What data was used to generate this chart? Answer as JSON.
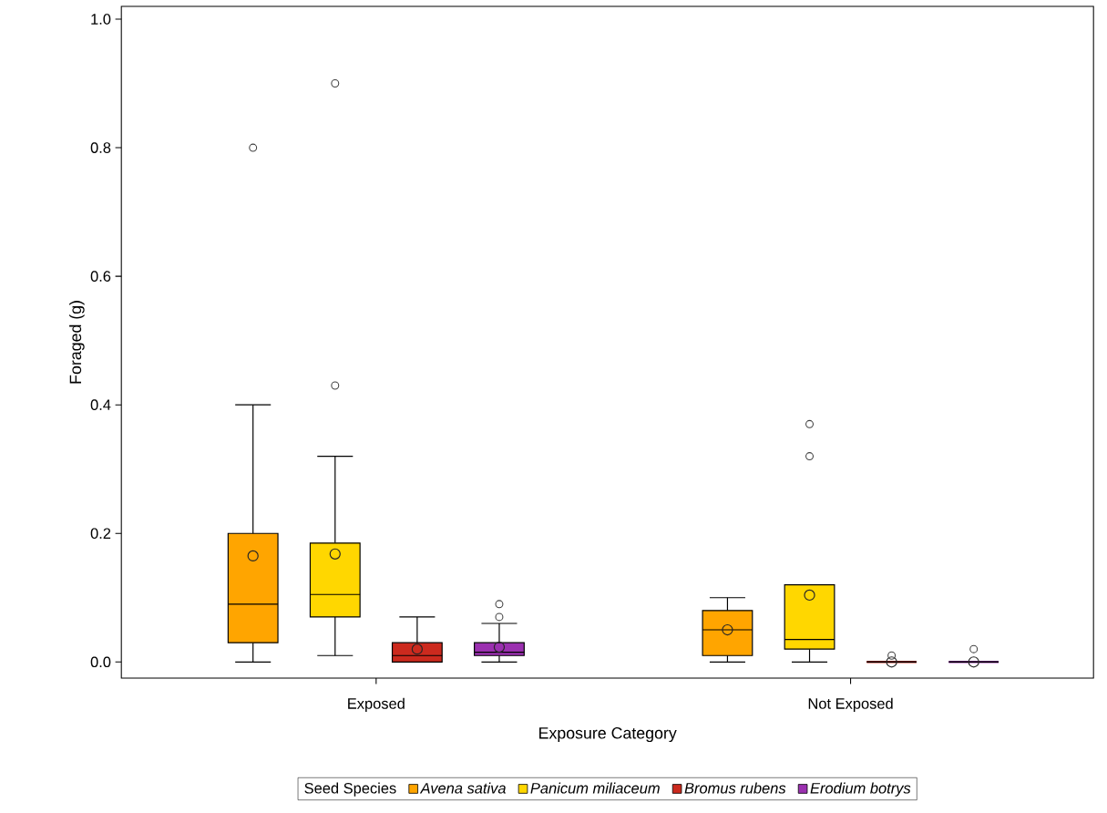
{
  "chart_data": {
    "type": "box",
    "xlabel": "Exposure Category",
    "ylabel": "Foraged (g)",
    "legend_title": "Seed Species",
    "categories": [
      "Exposed",
      "Not Exposed"
    ],
    "ylim": [
      -0.025,
      1.02
    ],
    "yticks": [
      {
        "value": 0,
        "label": "0.0"
      },
      {
        "value": 0.2,
        "label": "0.2"
      },
      {
        "value": 0.4,
        "label": "0.4"
      },
      {
        "value": 0.6,
        "label": "0.6"
      },
      {
        "value": 0.8,
        "label": "0.8"
      },
      {
        "value": 1.0,
        "label": "1.0"
      }
    ],
    "legend": "bottom",
    "marker": "circle",
    "series": [
      {
        "name": "Avena sativa",
        "color": "#ffa500",
        "boxes": [
          {
            "low": 0,
            "q1": 0.03,
            "median": 0.09,
            "q3": 0.2,
            "high": 0.4,
            "mean": 0.165,
            "outliers": [
              0.8
            ]
          },
          {
            "low": 0,
            "q1": 0.01,
            "median": 0.05,
            "q3": 0.08,
            "high": 0.1,
            "mean": 0.05
          }
        ]
      },
      {
        "name": "Panicum miliaceum",
        "color": "#ffd700",
        "boxes": [
          {
            "low": 0.01,
            "q1": 0.07,
            "median": 0.105,
            "q3": 0.185,
            "high": 0.32,
            "mean": 0.168,
            "outliers": [
              0.43,
              0.9
            ]
          },
          {
            "low": 0,
            "q1": 0.02,
            "median": 0.035,
            "q3": 0.12,
            "high": 0.12,
            "mean": 0.104,
            "outliers": [
              0.32,
              0.37
            ]
          }
        ]
      },
      {
        "name": "Bromus rubens",
        "color": "#cc2a1e",
        "boxes": [
          {
            "low": 0,
            "q1": 0,
            "median": 0.01,
            "q3": 0.03,
            "high": 0.07,
            "mean": 0.02
          },
          {
            "low": 0,
            "q1": 0,
            "median": 0,
            "q3": 0,
            "high": 0,
            "mean": 0,
            "outliers": [
              0.01
            ]
          }
        ]
      },
      {
        "name": "Erodium botrys",
        "color": "#9b30b0",
        "boxes": [
          {
            "low": 0,
            "q1": 0.01,
            "median": 0.015,
            "q3": 0.03,
            "high": 0.06,
            "mean": 0.023,
            "outliers": [
              0.07,
              0.09
            ]
          },
          {
            "low": 0,
            "q1": 0,
            "median": 0,
            "q3": 0,
            "high": 0,
            "mean": 0,
            "outliers": [
              0.02
            ]
          }
        ]
      }
    ]
  }
}
